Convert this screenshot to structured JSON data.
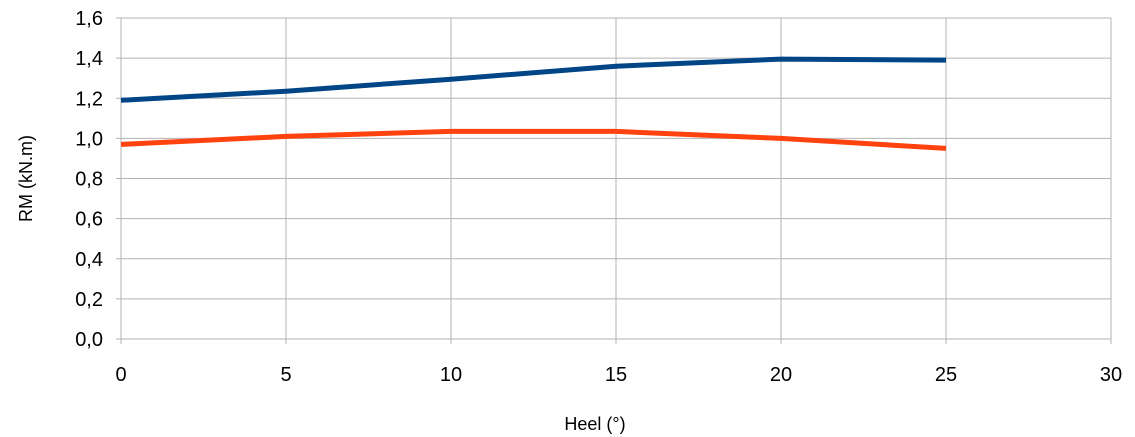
{
  "chart_data": {
    "type": "line",
    "title": "",
    "xlabel": "Heel (°)",
    "ylabel": "RM (kN.m)",
    "xlim": [
      0,
      30
    ],
    "ylim": [
      0,
      1.6
    ],
    "x_ticks": [
      0,
      5,
      10,
      15,
      20,
      25,
      30
    ],
    "x_tick_labels": [
      "0",
      "5",
      "10",
      "15",
      "20",
      "25",
      "30"
    ],
    "y_ticks": [
      0,
      0.2,
      0.4,
      0.6,
      0.8,
      1.0,
      1.2,
      1.4,
      1.6
    ],
    "y_tick_labels": [
      "0,0",
      "0,2",
      "0,4",
      "0,6",
      "0,8",
      "1,0",
      "1,2",
      "1,4",
      "1,6"
    ],
    "grid": true,
    "legend": "none",
    "x": [
      0,
      5,
      10,
      15,
      20,
      25
    ],
    "series": [
      {
        "color": "#004586",
        "values": [
          1.19,
          1.235,
          1.295,
          1.36,
          1.395,
          1.39
        ]
      },
      {
        "color": "#ff420e",
        "values": [
          0.97,
          1.01,
          1.035,
          1.035,
          1.0,
          0.95
        ]
      }
    ]
  }
}
